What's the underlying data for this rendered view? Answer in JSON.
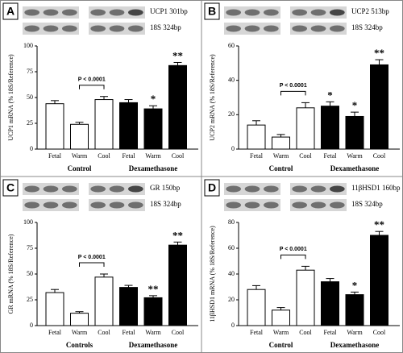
{
  "chart_data": [
    {
      "type": "bar",
      "panel": "A",
      "blots": [
        "UCP1 301bp",
        "18S 324bp"
      ],
      "y_label": "UCP1 mRNA (% 18S/Reference)",
      "categories": [
        "Fetal",
        "Warm",
        "Cool",
        "Fetal",
        "Warm",
        "Cool"
      ],
      "groups": [
        "Control",
        "Dexamethasone"
      ],
      "group_colors": [
        "#ffffff",
        "#000000"
      ],
      "values": [
        44,
        24,
        48,
        45,
        39,
        81
      ],
      "errors": [
        3,
        2,
        3,
        3,
        3,
        3
      ],
      "significance": [
        null,
        null,
        null,
        null,
        "*",
        "**"
      ],
      "p_annotation": "P < 0.0001",
      "ylim": [
        0,
        100
      ],
      "yticks": [
        0,
        25,
        50,
        75,
        100
      ]
    },
    {
      "type": "bar",
      "panel": "B",
      "blots": [
        "UCP2 513bp",
        "18S 324bp"
      ],
      "y_label": "UCP2 mRNA (% 18S/Reference)",
      "categories": [
        "Fetal",
        "Warm",
        "Cool",
        "Fetal",
        "Warm",
        "Cool"
      ],
      "groups": [
        "Control",
        "Dexamethasone"
      ],
      "group_colors": [
        "#ffffff",
        "#000000"
      ],
      "values": [
        14,
        7,
        24,
        25,
        19,
        49
      ],
      "errors": [
        2.5,
        1.5,
        3,
        2.5,
        2.5,
        3
      ],
      "significance": [
        null,
        null,
        null,
        "*",
        "*",
        "**"
      ],
      "p_annotation": "P < 0.0001",
      "ylim": [
        0,
        60
      ],
      "yticks": [
        0,
        20,
        40,
        60
      ]
    },
    {
      "type": "bar",
      "panel": "C",
      "blots": [
        "GR 150bp",
        "18S 324bp"
      ],
      "y_label": "GR mRNA (% 18S/Reference)",
      "categories": [
        "Fetal",
        "Warm",
        "Cool",
        "Fetal",
        "Warm",
        "Cool"
      ],
      "groups": [
        "Controls",
        "Dexamethasone"
      ],
      "group_colors": [
        "#ffffff",
        "#000000"
      ],
      "values": [
        32,
        12,
        47,
        37,
        27,
        78
      ],
      "errors": [
        3,
        1.5,
        3,
        2,
        2,
        3
      ],
      "significance": [
        null,
        null,
        null,
        null,
        "**",
        "**"
      ],
      "p_annotation": "P < 0.0001",
      "ylim": [
        0,
        100
      ],
      "yticks": [
        0,
        25,
        50,
        75,
        100
      ]
    },
    {
      "type": "bar",
      "panel": "D",
      "blots": [
        "11βHSD1 160bp",
        "18S 324bp"
      ],
      "y_label": "11βHSD1 mRNA (% 18S/Reference)",
      "categories": [
        "Fetal",
        "Warm",
        "Cool",
        "Fetal",
        "Warm",
        "Cool"
      ],
      "groups": [
        "Control",
        "Dexamethasone"
      ],
      "group_colors": [
        "#ffffff",
        "#000000"
      ],
      "values": [
        28,
        12,
        43,
        34,
        24,
        70
      ],
      "errors": [
        3,
        2,
        3,
        2.5,
        2,
        3
      ],
      "significance": [
        null,
        null,
        null,
        null,
        "*",
        "**"
      ],
      "p_annotation": "P < 0.0001",
      "ylim": [
        0,
        80
      ],
      "yticks": [
        0,
        20,
        40,
        60,
        80
      ]
    }
  ]
}
